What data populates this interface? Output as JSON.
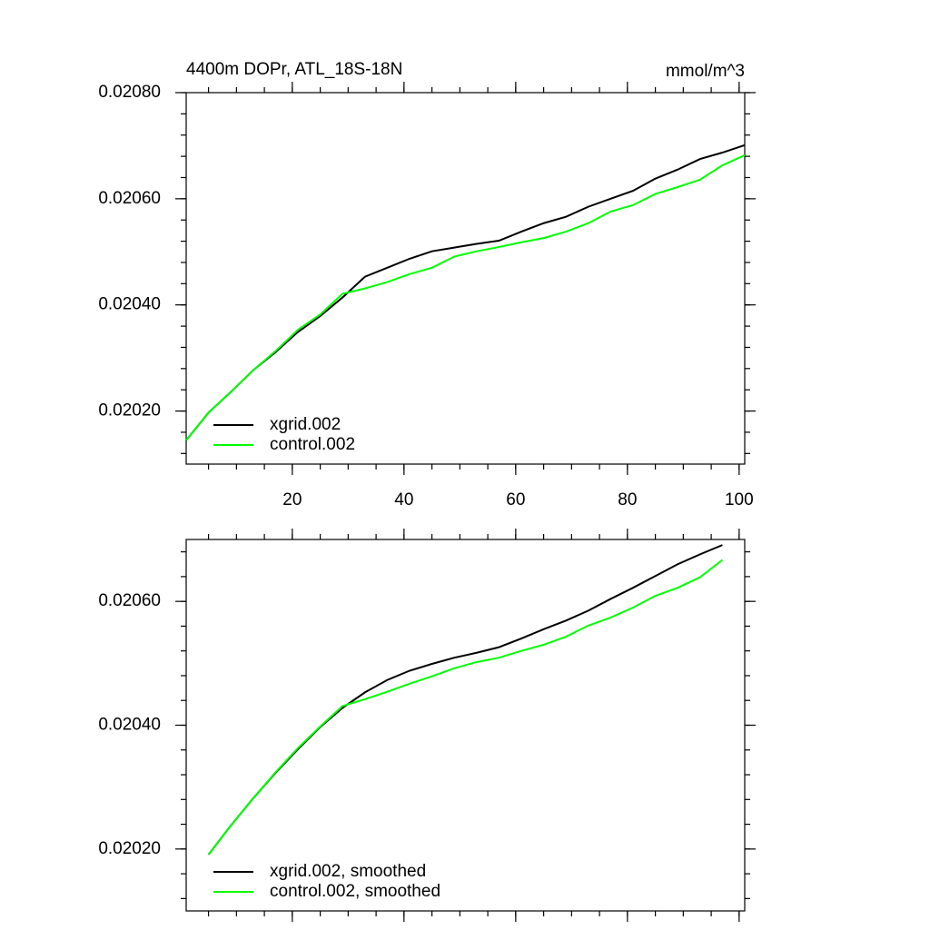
{
  "chart_data": [
    {
      "type": "line",
      "title": "4400m DOPr, ATL_18S-18N",
      "subtitle": "mmol/m^3",
      "x": [
        1,
        5,
        9,
        13,
        17,
        21,
        25,
        29,
        33,
        37,
        41,
        45,
        49,
        53,
        57,
        61,
        65,
        69,
        73,
        77,
        81,
        85,
        89,
        93,
        97,
        101
      ],
      "series": [
        {
          "name": "xgrid.002",
          "color": "#000000",
          "values": [
            0.020145,
            0.020197,
            0.020236,
            0.020277,
            0.020311,
            0.020349,
            0.020379,
            0.020414,
            0.020453,
            0.02047,
            0.020487,
            0.020501,
            0.020508,
            0.020515,
            0.020521,
            0.020538,
            0.020554,
            0.020566,
            0.020585,
            0.0206,
            0.020615,
            0.020638,
            0.020655,
            0.020675,
            0.020687,
            0.020701
          ]
        },
        {
          "name": "control.002",
          "color": "#00ff00",
          "values": [
            0.020145,
            0.020197,
            0.020236,
            0.020277,
            0.020313,
            0.020353,
            0.020382,
            0.020421,
            0.020431,
            0.020443,
            0.020458,
            0.02047,
            0.020491,
            0.020501,
            0.020509,
            0.020518,
            0.020526,
            0.020538,
            0.020554,
            0.020576,
            0.020588,
            0.020609,
            0.020622,
            0.020636,
            0.020663,
            0.020682
          ]
        }
      ],
      "xlim": [
        1,
        101
      ],
      "xticks": [
        20,
        40,
        60,
        80,
        100
      ],
      "ylim": [
        0.0201,
        0.0208
      ],
      "yticks": [
        {
          "value": 0.0202,
          "label": "0.02020"
        },
        {
          "value": 0.0204,
          "label": "0.02040"
        },
        {
          "value": 0.0206,
          "label": "0.02060"
        },
        {
          "value": 0.0208,
          "label": "0.02080"
        }
      ],
      "legend": "lower left"
    },
    {
      "type": "line",
      "x": [
        5,
        9,
        13,
        17,
        21,
        25,
        29,
        33,
        37,
        41,
        45,
        49,
        53,
        57,
        61,
        65,
        69,
        73,
        77,
        81,
        85,
        89,
        93,
        97
      ],
      "series": [
        {
          "name": "xgrid.002, smoothed",
          "color": "#000000",
          "values": [
            0.020191,
            0.020238,
            0.020282,
            0.020323,
            0.020361,
            0.020397,
            0.020428,
            0.020453,
            0.020473,
            0.020488,
            0.020499,
            0.020509,
            0.020517,
            0.020526,
            0.02054,
            0.020555,
            0.020569,
            0.020585,
            0.020604,
            0.020622,
            0.020641,
            0.02066,
            0.020676,
            0.020691
          ]
        },
        {
          "name": "control.002, smoothed",
          "color": "#00ff00",
          "values": [
            0.020191,
            0.020238,
            0.020282,
            0.020324,
            0.020363,
            0.020398,
            0.020431,
            0.020442,
            0.020454,
            0.020467,
            0.020479,
            0.020492,
            0.020502,
            0.020509,
            0.02052,
            0.02053,
            0.020543,
            0.020561,
            0.020574,
            0.02059,
            0.020609,
            0.020622,
            0.020639,
            0.020667
          ]
        }
      ],
      "xlim": [
        1,
        101
      ],
      "ylim": [
        0.0201,
        0.0207
      ],
      "yticks": [
        {
          "value": 0.0202,
          "label": "0.02020"
        },
        {
          "value": 0.0204,
          "label": "0.02040"
        },
        {
          "value": 0.0206,
          "label": "0.02060"
        }
      ],
      "legend": "lower left"
    }
  ]
}
